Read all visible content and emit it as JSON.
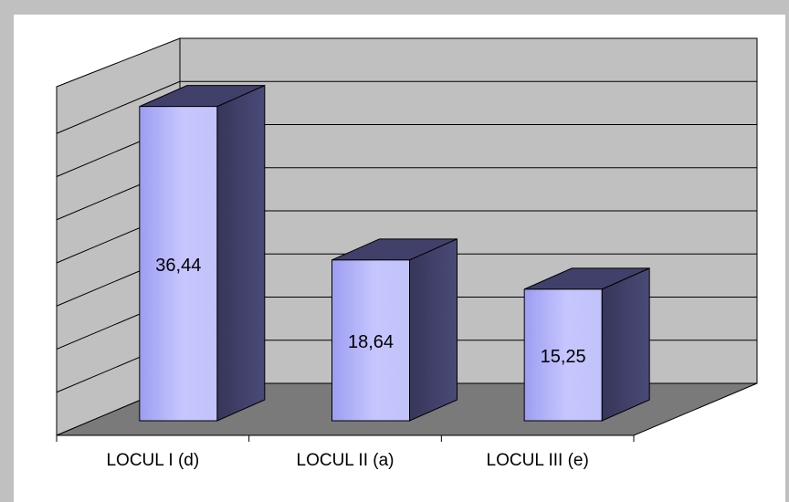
{
  "chart_data": {
    "type": "bar",
    "style": "3d-column",
    "categories": [
      "LOCUL I (d)",
      "LOCUL II (a)",
      "LOCUL III (e)"
    ],
    "values": [
      36.44,
      18.64,
      15.25
    ],
    "value_labels": [
      "36,44",
      "18,64",
      "15,25"
    ],
    "title": "",
    "xlabel": "",
    "ylabel": "",
    "ylim": [
      0,
      40
    ],
    "y_major_step": 5,
    "grid": true,
    "legend": "none",
    "colors": {
      "bar_front_light": "#c6c6ff",
      "bar_front_dark": "#9d9df2",
      "bar_side": "#3f3f66",
      "bar_top": "#40406a",
      "back_wall": "#c0c0c0",
      "side_wall": "#c0c0c0",
      "floor": "#7a7a7a",
      "chart_area": "#ffffff",
      "frame": "#c0c0c0"
    }
  }
}
